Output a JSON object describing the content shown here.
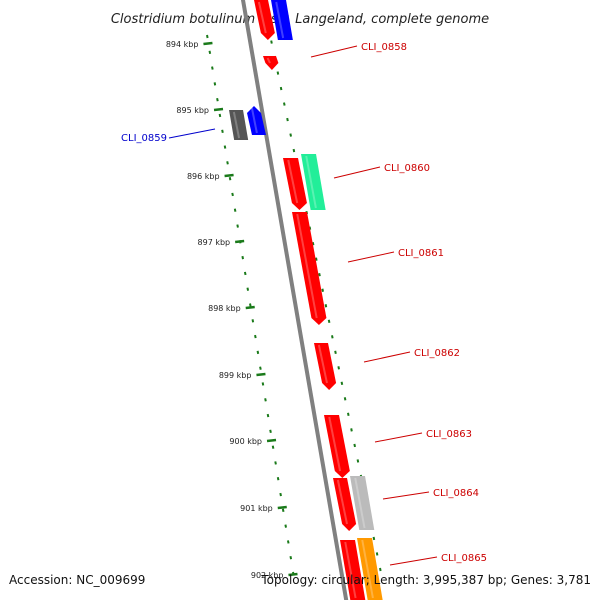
{
  "title": "Clostridium botulinum F str. Langeland, complete genome",
  "footer": {
    "accession": "Accession: NC_009699",
    "summary": "Topology: circular; Length: 3,995,387 bp; Genes: 3,781"
  },
  "ruler_ticks": [
    "894 kbp",
    "895 kbp",
    "896 kbp",
    "897 kbp",
    "898 kbp",
    "899 kbp",
    "900 kbp",
    "901 kbp",
    "902 kbp"
  ],
  "colors": {
    "backbone": "#808080",
    "tick": "#1a7a1a",
    "label_forward": "#cc0000",
    "label_reverse": "#0000cc",
    "gene_red": "#ff0000",
    "gene_blue": "#0000ff",
    "gene_dark_gray": "#555555",
    "gene_light_gray": "#bbbbbb",
    "gene_green": "#22ee99",
    "gene_orange": "#ff9900"
  },
  "gene_labels": [
    {
      "text": "CLI_0858",
      "color": "#cc0000"
    },
    {
      "text": "CLI_0859",
      "color": "#0000cc"
    },
    {
      "text": "CLI_0860",
      "color": "#cc0000"
    },
    {
      "text": "CLI_0861",
      "color": "#cc0000"
    },
    {
      "text": "CLI_0862",
      "color": "#cc0000"
    },
    {
      "text": "CLI_0863",
      "color": "#cc0000"
    },
    {
      "text": "CLI_0864",
      "color": "#cc0000"
    },
    {
      "text": "CLI_0865",
      "color": "#cc0000"
    }
  ],
  "features": [
    {
      "name": "gene-red",
      "color": "#ff0000"
    },
    {
      "name": "gene-blue",
      "color": "#0000ff"
    },
    {
      "name": "gene-red",
      "color": "#ff0000"
    },
    {
      "name": "gene-dark-gray",
      "color": "#555555"
    },
    {
      "name": "gene-blue",
      "color": "#0000ff"
    },
    {
      "name": "gene-red",
      "color": "#ff0000"
    },
    {
      "name": "gene-green",
      "color": "#22ee99"
    },
    {
      "name": "gene-red",
      "color": "#ff0000"
    },
    {
      "name": "gene-red",
      "color": "#ff0000"
    },
    {
      "name": "gene-red",
      "color": "#ff0000"
    },
    {
      "name": "gene-red",
      "color": "#ff0000"
    },
    {
      "name": "gene-light-gray",
      "color": "#bbbbbb"
    },
    {
      "name": "gene-red",
      "color": "#ff0000"
    },
    {
      "name": "gene-orange",
      "color": "#ff9900"
    }
  ]
}
